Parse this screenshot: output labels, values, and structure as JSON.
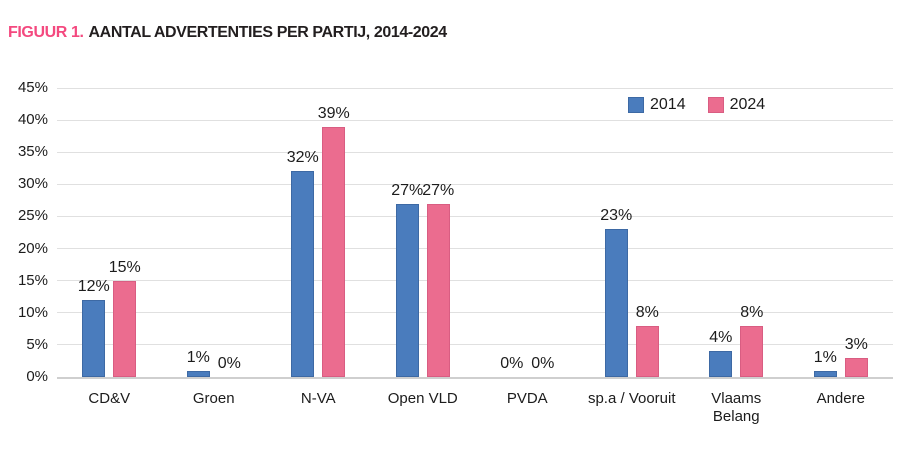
{
  "title": {
    "prefix": "FIGUUR 1.",
    "text": "AANTAL ADVERTENTIES PER PARTIJ, 2014-2024"
  },
  "colors": {
    "title_accent": "#F4497F",
    "title_text": "#221E1F",
    "series_2014_fill": "#4A7CBD",
    "series_2014_border": "#3D69A4",
    "series_2024_fill": "#EB6C8F",
    "series_2024_border": "#D95D82",
    "gridline": "#E0E0E0",
    "axis_line": "#CFCFCF",
    "label_text": "#1C1C1C",
    "background": "#FFFFFF"
  },
  "chart_data": {
    "type": "bar",
    "title": "AANTAL ADVERTENTIES PER PARTIJ, 2014-2024",
    "categories": [
      "CD&V",
      "Groen",
      "N-VA",
      "Open VLD",
      "PVDA",
      "sp.a / Vooruit",
      "Vlaams Belang",
      "Andere"
    ],
    "series": [
      {
        "name": "2014",
        "color": "#4A7CBD",
        "border": "#3D69A4",
        "values": [
          12,
          1,
          32,
          27,
          0,
          23,
          4,
          1
        ]
      },
      {
        "name": "2024",
        "color": "#EB6C8F",
        "border": "#D95D82",
        "values": [
          15,
          0,
          39,
          27,
          0,
          8,
          8,
          3
        ]
      }
    ],
    "value_suffix": "%",
    "xlabel": "",
    "ylabel": "",
    "ylim": [
      0,
      45
    ],
    "ytick_step": 5,
    "ytick_labels": [
      "0%",
      "5%",
      "10%",
      "15%",
      "20%",
      "25%",
      "30%",
      "35%",
      "40%",
      "45%"
    ],
    "grid": true,
    "data_labels": true,
    "legend_position": "top-right"
  }
}
